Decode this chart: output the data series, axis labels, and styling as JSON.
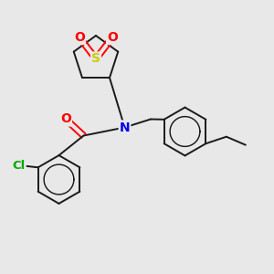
{
  "bg_color": "#e8e8e8",
  "bond_color": "#1a1a1a",
  "bond_width": 1.4,
  "atom_colors": {
    "S": "#cccc00",
    "O": "#ff0000",
    "N": "#0000ee",
    "Cl": "#00aa00",
    "C": "#1a1a1a"
  }
}
